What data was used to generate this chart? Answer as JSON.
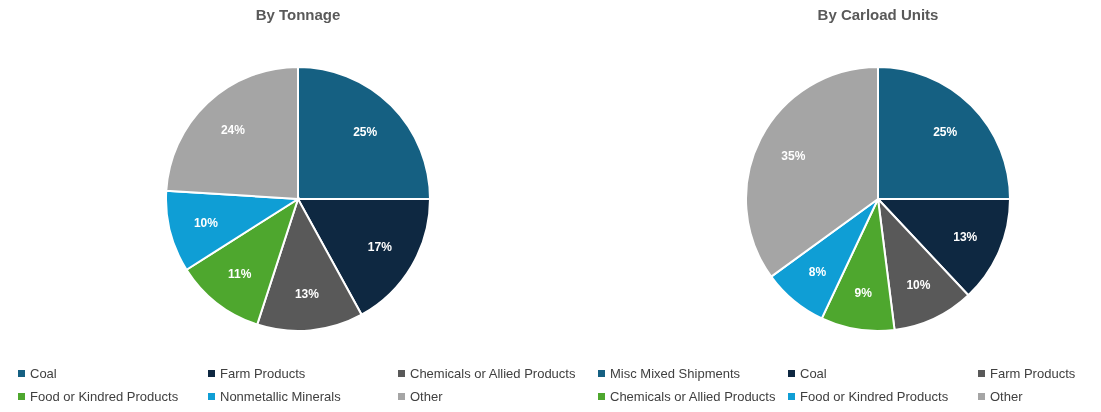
{
  "chart_data": [
    {
      "type": "pie",
      "title": "By Tonnage",
      "categories": [
        "Coal",
        "Farm Products",
        "Chemicals or Allied Products",
        "Food or Kindred Products",
        "Nonmetallic Minerals",
        "Other"
      ],
      "values": [
        25,
        17,
        13,
        11,
        10,
        24
      ],
      "colors": [
        "#156082",
        "#0e2841",
        "#595959",
        "#4ea72e",
        "#0f9ed5",
        "#a5a5a5"
      ],
      "value_labels": [
        "25%",
        "17%",
        "13%",
        "11%",
        "10%",
        "24%"
      ],
      "legend": "bottom"
    },
    {
      "type": "pie",
      "title": "By Carload Units",
      "categories": [
        "Misc Mixed Shipments",
        "Coal",
        "Farm Products",
        "Chemicals or Allied Products",
        "Food or Kindred Products",
        "Other"
      ],
      "values": [
        25,
        13,
        10,
        9,
        8,
        35
      ],
      "colors": [
        "#156082",
        "#0e2841",
        "#595959",
        "#4ea72e",
        "#0f9ed5",
        "#a5a5a5"
      ],
      "value_labels": [
        "25%",
        "13%",
        "10%",
        "9%",
        "8%",
        "35%"
      ],
      "legend": "bottom"
    }
  ]
}
